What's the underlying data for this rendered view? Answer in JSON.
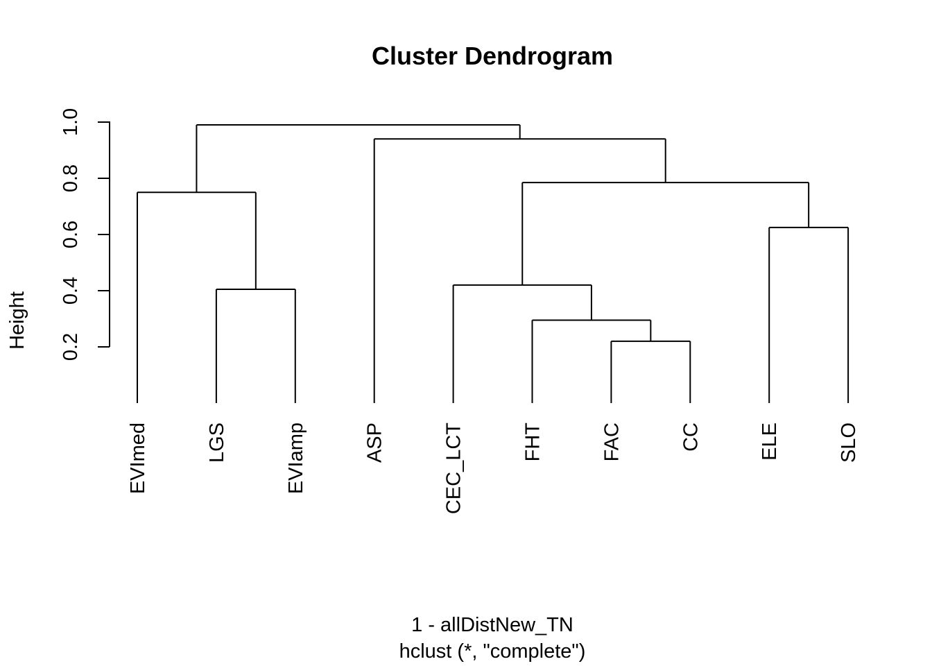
{
  "chart_data": {
    "type": "dendrogram",
    "title": "Cluster Dendrogram",
    "ylabel": "Height",
    "xlabel_line1": "1 - allDistNew_TN",
    "xlabel_line2": "hclust (*, \"complete\")",
    "ylim": [
      0,
      1.0
    ],
    "yticks": [
      0.2,
      0.4,
      0.6,
      0.8,
      1.0
    ],
    "ytick_labels": [
      "0.2",
      "0.4",
      "0.6",
      "0.8",
      "1.0"
    ],
    "leaves": [
      "EVImed",
      "LGS",
      "EVIamp",
      "ASP",
      "CEC_LCT",
      "FHT",
      "FAC",
      "CC",
      "ELE",
      "SLO"
    ],
    "merges": [
      {
        "a": "FAC",
        "b": "CC",
        "height": 0.22
      },
      {
        "a": "FHT",
        "b": "m1",
        "height": 0.295
      },
      {
        "a": "LGS",
        "b": "EVIamp",
        "height": 0.405
      },
      {
        "a": "CEC_LCT",
        "b": "m2",
        "height": 0.42
      },
      {
        "a": "ELE",
        "b": "SLO",
        "height": 0.625
      },
      {
        "a": "EVImed",
        "b": "m3",
        "height": 0.75
      },
      {
        "a": "m4",
        "b": "m5",
        "height": 0.785
      },
      {
        "a": "ASP",
        "b": "m7",
        "height": 0.94
      },
      {
        "a": "m6",
        "b": "m8",
        "height": 0.99
      }
    ]
  }
}
